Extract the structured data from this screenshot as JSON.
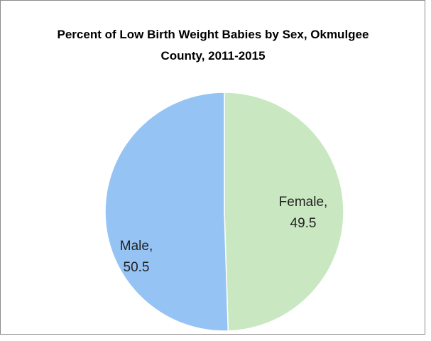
{
  "chart_data": {
    "type": "pie",
    "title": "Percent of Low Birth Weight Babies by Sex, Okmulgee County, 2011-2015",
    "categories": [
      "Female,",
      "Male,"
    ],
    "values": [
      49.5,
      50.5
    ],
    "colors": [
      "#c9e8c1",
      "#95c4f4"
    ]
  }
}
